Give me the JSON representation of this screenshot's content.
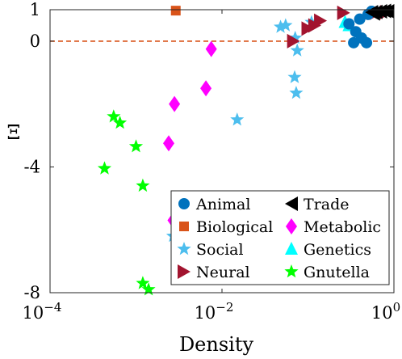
{
  "chart_data": {
    "type": "scatter",
    "xlabel": "Density",
    "ylabel": "Ξ",
    "x_scale": "log",
    "xlim": [
      0.0001,
      1
    ],
    "ylim": [
      -8,
      1
    ],
    "x_ticks": [
      {
        "value": 0.0001,
        "base": "10",
        "exp": "−4"
      },
      {
        "value": 0.01,
        "base": "10",
        "exp": "−2"
      },
      {
        "value": 1,
        "base": "10",
        "exp": "0"
      }
    ],
    "y_ticks": [
      {
        "value": 1,
        "label": "1"
      },
      {
        "value": 0,
        "label": "0"
      },
      {
        "value": -4,
        "label": "-4"
      },
      {
        "value": -8,
        "label": "-8"
      }
    ],
    "reference_line": {
      "y": 0,
      "style": "dashed",
      "color": "#d95319"
    },
    "legend_position": "bottom-right",
    "series": [
      {
        "name": "Animal",
        "marker": "circle",
        "color": "#0072bd",
        "points": [
          [
            0.34,
            -0.05
          ],
          [
            0.36,
            0.3
          ],
          [
            0.42,
            0.1
          ],
          [
            0.48,
            -0.05
          ],
          [
            0.5,
            0.85
          ],
          [
            0.55,
            0.95
          ],
          [
            0.3,
            0.55
          ],
          [
            0.4,
            0.7
          ]
        ]
      },
      {
        "name": "Trade",
        "marker": "triangle-left",
        "color": "#000000",
        "points": [
          [
            0.55,
            0.92
          ],
          [
            0.62,
            0.93
          ],
          [
            0.7,
            0.95
          ],
          [
            0.78,
            0.96
          ],
          [
            0.85,
            0.95
          ],
          [
            0.58,
            0.88
          ]
        ]
      },
      {
        "name": "Biological",
        "marker": "square",
        "color": "#d95319",
        "points": [
          [
            0.0029,
            0.97
          ]
        ]
      },
      {
        "name": "Metabolic",
        "marker": "diamond",
        "color": "#ff00ff",
        "points": [
          [
            0.0075,
            -0.25
          ],
          [
            0.0065,
            -1.5
          ],
          [
            0.0028,
            -2.0
          ],
          [
            0.0024,
            -3.25
          ],
          [
            0.0027,
            -5.7
          ]
        ]
      },
      {
        "name": "Social",
        "marker": "star",
        "color": "#4dbeee",
        "points": [
          [
            0.048,
            0.45
          ],
          [
            0.055,
            0.5
          ],
          [
            0.071,
            0.1
          ],
          [
            0.075,
            -0.3
          ],
          [
            0.07,
            -1.15
          ],
          [
            0.073,
            -1.65
          ],
          [
            0.015,
            -2.5
          ],
          [
            0.0027,
            -6.2
          ],
          [
            0.11,
            0.6
          ]
        ]
      },
      {
        "name": "Genetics",
        "marker": "triangle-up",
        "color": "#00ffff",
        "points": [
          [
            0.27,
            0.6
          ],
          [
            0.3,
            0.5
          ]
        ]
      },
      {
        "name": "Neural",
        "marker": "triangle-right",
        "color": "#a2142f",
        "points": [
          [
            0.068,
            0.0
          ],
          [
            0.1,
            0.4
          ],
          [
            0.12,
            0.5
          ],
          [
            0.14,
            0.65
          ],
          [
            0.26,
            0.9
          ],
          [
            0.62,
            0.9
          ],
          [
            0.82,
            0.92
          ]
        ]
      },
      {
        "name": "Gnutella",
        "marker": "star",
        "color": "#00ff00",
        "points": [
          [
            0.00055,
            -2.4
          ],
          [
            0.00065,
            -2.6
          ],
          [
            0.001,
            -3.35
          ],
          [
            0.00043,
            -4.05
          ],
          [
            0.0012,
            -4.6
          ],
          [
            0.0012,
            -7.7
          ],
          [
            0.0014,
            -7.9
          ]
        ]
      }
    ]
  }
}
